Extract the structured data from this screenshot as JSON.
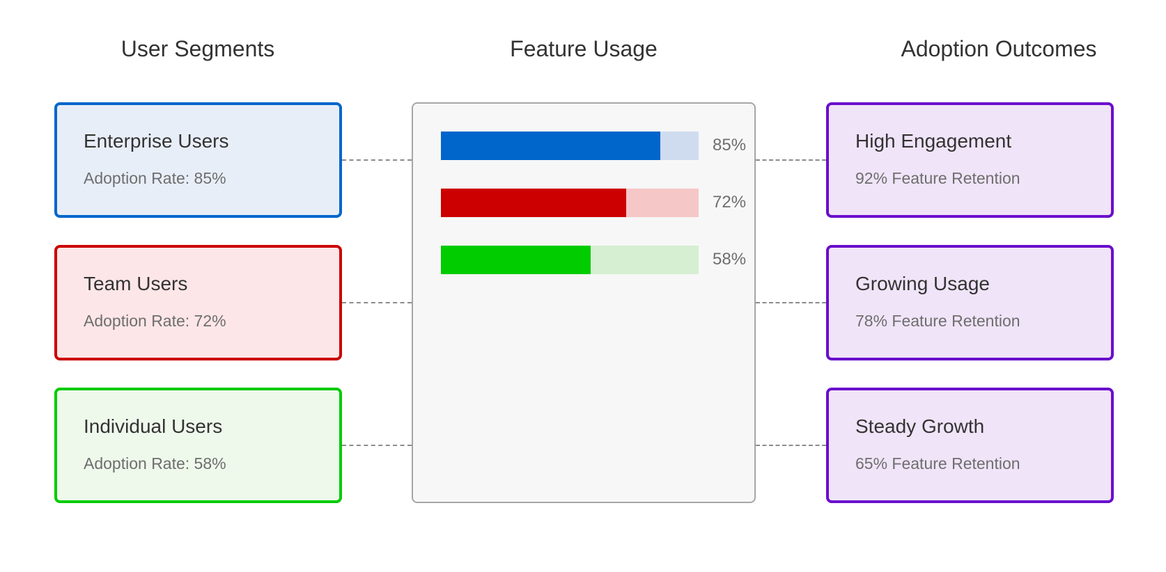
{
  "columns": {
    "left_title": "User Segments",
    "center_title": "Feature Usage",
    "right_title": "Adoption Outcomes"
  },
  "segments": [
    {
      "name": "Enterprise Users",
      "detail": "Adoption Rate: 85%",
      "border": "#0066cc",
      "fill": "#e8eef8"
    },
    {
      "name": "Team Users",
      "detail": "Adoption Rate: 72%",
      "border": "#cc0000",
      "fill": "#fde6e7"
    },
    {
      "name": "Individual Users",
      "detail": "Adoption Rate: 58%",
      "border": "#00cc00",
      "fill": "#eef8eb"
    }
  ],
  "usage_bars": [
    {
      "value": 0.85,
      "label": "85%",
      "color": "#0066cc",
      "track": "#cfdcef"
    },
    {
      "value": 0.72,
      "label": "72%",
      "color": "#cc0000",
      "track": "#f6c7c7"
    },
    {
      "value": 0.58,
      "label": "58%",
      "color": "#00cc00",
      "track": "#d6efd2"
    }
  ],
  "outcomes": [
    {
      "name": "High Engagement",
      "detail": "92% Feature Retention",
      "border": "#6a0dcc",
      "fill": "#f0e4f8"
    },
    {
      "name": "Growing Usage",
      "detail": "78% Feature Retention",
      "border": "#6a0dcc",
      "fill": "#f0e4f8"
    },
    {
      "name": "Steady Growth",
      "detail": "65% Feature Retention",
      "border": "#6a0dcc",
      "fill": "#f0e4f8"
    }
  ]
}
